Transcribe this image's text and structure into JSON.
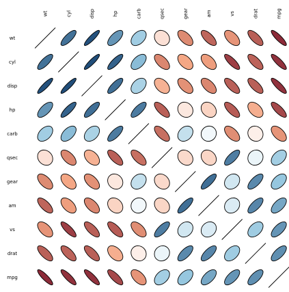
{
  "chart_data": {
    "type": "heatmap",
    "glyph": "ellipse",
    "variables": [
      "wt",
      "cyl",
      "disp",
      "hp",
      "carb",
      "qsec",
      "gear",
      "am",
      "vs",
      "drat",
      "mpg"
    ],
    "matrix": [
      [
        1.0,
        0.78,
        0.89,
        0.66,
        0.43,
        -0.17,
        -0.58,
        -0.69,
        -0.55,
        -0.71,
        -0.87
      ],
      [
        0.78,
        1.0,
        0.9,
        0.83,
        0.53,
        -0.59,
        -0.49,
        -0.52,
        -0.81,
        -0.7,
        -0.85
      ],
      [
        0.89,
        0.9,
        1.0,
        0.79,
        0.39,
        -0.43,
        -0.56,
        -0.59,
        -0.71,
        -0.71,
        -0.85
      ],
      [
        0.66,
        0.83,
        0.79,
        1.0,
        0.75,
        -0.71,
        -0.13,
        -0.24,
        -0.72,
        -0.45,
        -0.78
      ],
      [
        0.43,
        0.53,
        0.39,
        0.75,
        1.0,
        -0.66,
        0.27,
        0.06,
        -0.57,
        -0.09,
        -0.55
      ],
      [
        -0.17,
        -0.59,
        -0.43,
        -0.71,
        -0.66,
        1.0,
        -0.21,
        -0.23,
        0.74,
        0.09,
        0.42
      ],
      [
        -0.58,
        -0.49,
        -0.56,
        -0.13,
        0.27,
        -0.21,
        1.0,
        0.79,
        0.21,
        0.7,
        0.48
      ],
      [
        -0.69,
        -0.52,
        -0.59,
        -0.24,
        0.06,
        -0.23,
        0.79,
        1.0,
        0.17,
        0.71,
        0.6
      ],
      [
        -0.55,
        -0.81,
        -0.71,
        -0.72,
        -0.57,
        0.74,
        0.21,
        0.17,
        1.0,
        0.44,
        0.66
      ],
      [
        -0.71,
        -0.7,
        -0.71,
        -0.45,
        -0.09,
        0.09,
        0.7,
        0.71,
        0.44,
        1.0,
        0.68
      ],
      [
        -0.87,
        -0.85,
        -0.85,
        -0.78,
        -0.55,
        0.42,
        0.48,
        0.6,
        0.66,
        0.68,
        1.0
      ]
    ],
    "color_scale": {
      "negative": "#67001f",
      "mid_negative": "#f4a582",
      "zero": "#ffffff",
      "mid_positive": "#92c5de",
      "positive": "#053061"
    },
    "diagonal": "line",
    "column_labels_position": "top",
    "column_labels_rotation": "vertical",
    "row_labels_position": "left"
  }
}
